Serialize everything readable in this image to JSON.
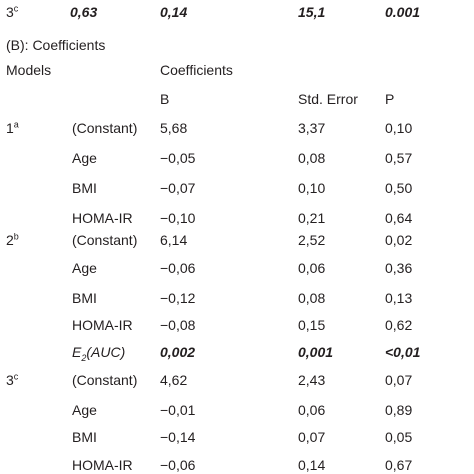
{
  "top_row": {
    "model": "3",
    "model_sup": "c",
    "cells": [
      "0,63",
      "0,14",
      "15,1",
      "0.001"
    ],
    "style": "bold-italic"
  },
  "section_title": "(B): Coefficients",
  "header": {
    "models": "Models",
    "coefficients": "Coefficients",
    "b": "B",
    "std_error": "Std. Error",
    "p": "P"
  },
  "rows": [
    {
      "model": "1",
      "model_sup": "a",
      "variable": "(Constant)",
      "b": "5,68",
      "se": "3,37",
      "p": "0,10"
    },
    {
      "variable": "Age",
      "b": "−0,05",
      "se": "0,08",
      "p": "0,57"
    },
    {
      "variable": "BMI",
      "b": "−0,07",
      "se": "0,10",
      "p": "0,50"
    },
    {
      "variable": "HOMA-IR",
      "b": "−0,10",
      "se": "0,21",
      "p": "0,64"
    },
    {
      "model": "2",
      "model_sup": "b",
      "variable": "(Constant)",
      "b": "6,14",
      "se": "2,52",
      "p": "0,02"
    },
    {
      "variable": "Age",
      "b": "−0,06",
      "se": "0,06",
      "p": "0,36"
    },
    {
      "variable": "BMI",
      "b": "−0,12",
      "se": "0,08",
      "p": "0,13"
    },
    {
      "variable": "HOMA-IR",
      "b": "−0,08",
      "se": "0,15",
      "p": "0,62"
    },
    {
      "variable": "E",
      "variable_sub": "2",
      "variable_suffix": "(AUC)",
      "b": "0,002",
      "se": "0,001",
      "p": "<0,01",
      "style": "bold-italic"
    },
    {
      "model": "3",
      "model_sup": "c",
      "variable": "(Constant)",
      "b": "4,62",
      "se": "2,43",
      "p": "0,07"
    },
    {
      "variable": "Age",
      "b": "−0,01",
      "se": "0,06",
      "p": "0,89"
    },
    {
      "variable": "BMI",
      "b": "−0,14",
      "se": "0,07",
      "p": "0,05"
    },
    {
      "variable": "HOMA-IR",
      "b": "−0,06",
      "se": "0,14",
      "p": "0,67"
    }
  ]
}
